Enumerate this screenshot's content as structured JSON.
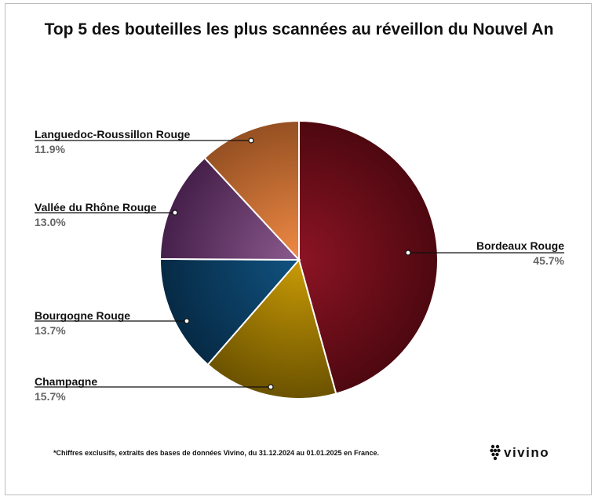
{
  "title": "Top 5 des bouteilles les plus scannées au réveillon du Nouvel An",
  "footnote": "*Chiffres exclusifs, extraits des bases de données Vivino, du 31.12.2024 au 01.01.2025 en France.",
  "brand": {
    "name": "vivino",
    "icon": "grape-cluster-icon"
  },
  "chart_data": {
    "type": "pie",
    "title": "Top 5 des bouteilles les plus scannées au réveillon du Nouvel An",
    "start": "12 o'clock",
    "direction": "clockwise",
    "slices": [
      {
        "label": "Bordeaux Rouge",
        "value": 45.7,
        "display": "45.7%",
        "color_light": "#8c1424",
        "color_dark": "#4e0810",
        "label_side": "right"
      },
      {
        "label": "Champagne",
        "value": 15.7,
        "display": "15.7%",
        "color_light": "#c99b06",
        "color_dark": "#6b5200",
        "label_side": "left"
      },
      {
        "label": "Bourgogne Rouge",
        "value": 13.7,
        "display": "13.7%",
        "color_light": "#115280",
        "color_dark": "#062a45",
        "label_side": "left"
      },
      {
        "label": "Vallée du Rhône Rouge",
        "value": 13.0,
        "display": "13.0%",
        "color_light": "#8b5a8e",
        "color_dark": "#45204a",
        "label_side": "left"
      },
      {
        "label": "Languedoc-Roussillon Rouge",
        "value": 11.9,
        "display": "11.9%",
        "color_light": "#f08a45",
        "color_dark": "#955022",
        "label_side": "left"
      }
    ]
  }
}
